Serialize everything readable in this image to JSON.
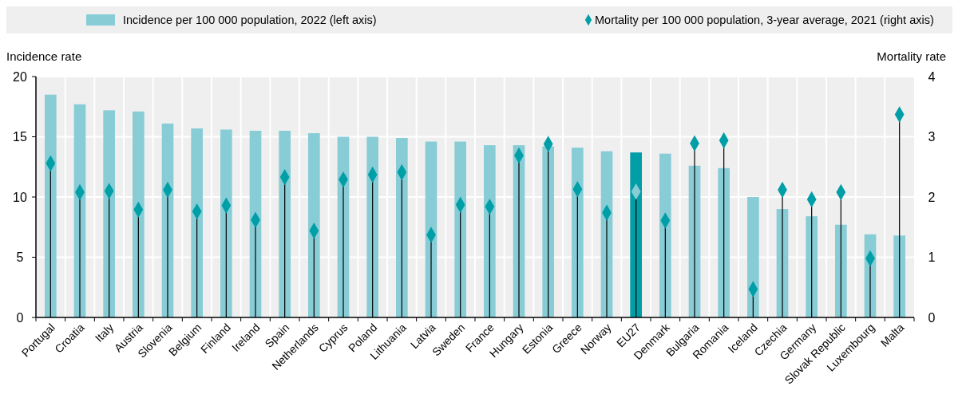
{
  "chart_data": {
    "type": "bar",
    "xlabel": null,
    "ylabel": "Incidence rate",
    "y2label": "Mortality rate",
    "categories": [
      "Portugal",
      "Croatia",
      "Italy",
      "Austria",
      "Slovenia",
      "Belgium",
      "Finland",
      "Ireland",
      "Spain",
      "Netherlands",
      "Cyprus",
      "Poland",
      "Lithuania",
      "Latvia",
      "Sweden",
      "France",
      "Hungary",
      "Estonia",
      "Greece",
      "Norway",
      "EU27",
      "Denmark",
      "Bulgaria",
      "Romania",
      "Iceland",
      "Czechia",
      "Germany",
      "Slovak Republic",
      "Luxembourg",
      "Malta"
    ],
    "series": [
      {
        "name": "Incidence per 100 000 population, 2022 (left axis)",
        "type": "bar",
        "color": "#88ccd6",
        "colors": [
          "#88ccd6",
          "#88ccd6",
          "#88ccd6",
          "#88ccd6",
          "#88ccd6",
          "#88ccd6",
          "#88ccd6",
          "#88ccd6",
          "#88ccd6",
          "#88ccd6",
          "#88ccd6",
          "#88ccd6",
          "#88ccd6",
          "#88ccd6",
          "#88ccd6",
          "#88ccd6",
          "#88ccd6",
          "#88ccd6",
          "#88ccd6",
          "#88ccd6",
          "#009ea6",
          "#88ccd6",
          "#88ccd6",
          "#88ccd6",
          "#88ccd6",
          "#88ccd6",
          "#88ccd6",
          "#88ccd6",
          "#88ccd6",
          "#88ccd6"
        ],
        "values": [
          18.5,
          17.7,
          17.2,
          17.1,
          16.1,
          15.7,
          15.6,
          15.5,
          15.5,
          15.3,
          15.0,
          15.0,
          14.9,
          14.6,
          14.6,
          14.3,
          14.3,
          14.2,
          14.1,
          13.8,
          13.7,
          13.6,
          12.6,
          12.4,
          10.0,
          9.0,
          8.4,
          7.7,
          6.9,
          6.8
        ]
      },
      {
        "name": "Mortality per 100 000 population, 3-year average, 2021 (right axis)",
        "type": "lollipop",
        "axis": "y2",
        "marker": "diamond",
        "color": "#009ea6",
        "colors": [
          "#009ea6",
          "#009ea6",
          "#009ea6",
          "#009ea6",
          "#009ea6",
          "#009ea6",
          "#009ea6",
          "#009ea6",
          "#009ea6",
          "#009ea6",
          "#009ea6",
          "#009ea6",
          "#009ea6",
          "#009ea6",
          "#009ea6",
          "#009ea6",
          "#009ea6",
          "#009ea6",
          "#009ea6",
          "#009ea6",
          "#88ccd6",
          "#009ea6",
          "#009ea6",
          "#009ea6",
          "#009ea6",
          "#009ea6",
          "#009ea6",
          "#009ea6",
          "#009ea6",
          "#009ea6"
        ],
        "values": [
          2.56,
          2.08,
          2.1,
          1.79,
          2.12,
          1.76,
          1.86,
          1.62,
          2.33,
          1.44,
          2.29,
          2.37,
          2.41,
          1.37,
          1.87,
          1.84,
          2.69,
          2.88,
          2.13,
          1.74,
          2.09,
          1.61,
          2.89,
          2.94,
          0.47,
          2.12,
          1.96,
          2.08,
          0.98,
          3.37
        ]
      }
    ],
    "ylim": [
      0,
      20
    ],
    "yticks": [
      0,
      5,
      10,
      15,
      20
    ],
    "y2lim": [
      0,
      4
    ],
    "y2ticks": [
      0,
      1,
      2,
      3,
      4
    ],
    "grid": true,
    "legend": "top"
  }
}
